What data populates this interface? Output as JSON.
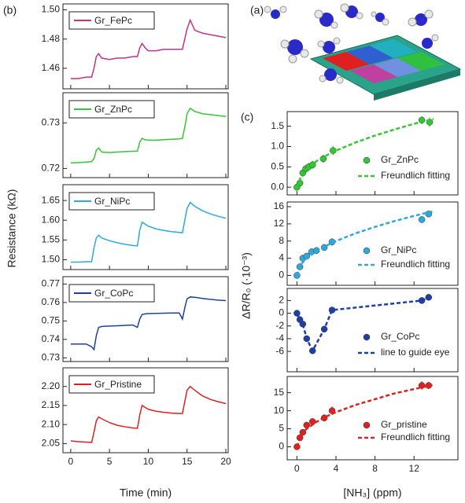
{
  "illustration": {
    "label": "(a)"
  },
  "chart_data": [
    {
      "type": "line",
      "panel_label": "(b)",
      "xlabel": "Time (min)",
      "ylabel": "Resistance (kΩ)",
      "xlim": [
        -1,
        20.3
      ],
      "xticks": [
        0,
        5,
        10,
        15,
        20
      ],
      "x": [
        0,
        1,
        2,
        2.7,
        3.0,
        3.3,
        3.6,
        4,
        5,
        6,
        7,
        8,
        8.6,
        8.9,
        9.2,
        9.6,
        10,
        11,
        12,
        13,
        14,
        14.4,
        14.7,
        15.0,
        15.4,
        16,
        17,
        18,
        19,
        20
      ],
      "panels": [
        {
          "ylim": [
            1.446,
            1.504
          ],
          "yticks": [
            1.46,
            1.48,
            {
              "value": 1.5,
              "label": "1.50"
            }
          ],
          "series": [
            {
              "name": "Gr_FePc",
              "color": "#c2318c",
              "values": [
                1.453,
                1.453,
                1.454,
                1.454,
                1.46,
                1.468,
                1.47,
                1.467,
                1.466,
                1.467,
                1.467,
                1.468,
                1.468,
                1.474,
                1.477,
                1.474,
                1.472,
                1.472,
                1.473,
                1.473,
                1.473,
                1.473,
                1.48,
                1.487,
                1.493,
                1.486,
                1.484,
                1.483,
                1.482,
                1.481
              ]
            }
          ]
        },
        {
          "ylim": [
            0.718,
            0.7366
          ],
          "yticks": [
            0.72,
            0.73
          ],
          "series": [
            {
              "name": "Gr_ZnPc",
              "color": "#33c733",
              "values": [
                0.7212,
                0.7213,
                0.7214,
                0.7215,
                0.7222,
                0.724,
                0.7245,
                0.7236,
                0.7235,
                0.7236,
                0.7237,
                0.7238,
                0.7238,
                0.7258,
                0.7266,
                0.7263,
                0.7262,
                0.7262,
                0.7263,
                0.7264,
                0.7265,
                0.7266,
                0.729,
                0.732,
                0.7332,
                0.7325,
                0.732,
                0.7318,
                0.7316,
                0.7314
              ]
            }
          ]
        },
        {
          "ylim": [
            1.475,
            1.69
          ],
          "yticks": [
            {
              "value": 1.5,
              "label": "1.50"
            },
            1.55,
            {
              "value": 1.6,
              "label": "1.60"
            },
            1.65
          ],
          "series": [
            {
              "name": "Gr_NiPc",
              "color": "#2fa8dc",
              "values": [
                1.494,
                1.494,
                1.495,
                1.495,
                1.53,
                1.555,
                1.562,
                1.555,
                1.548,
                1.543,
                1.539,
                1.536,
                1.535,
                1.575,
                1.595,
                1.59,
                1.585,
                1.578,
                1.574,
                1.571,
                1.569,
                1.568,
                1.6,
                1.63,
                1.645,
                1.635,
                1.624,
                1.616,
                1.61,
                1.605
              ]
            }
          ]
        },
        {
          "ylim": [
            0.728,
            0.774
          ],
          "yticks": [
            0.73,
            0.74,
            0.75,
            0.76,
            0.77
          ],
          "series": [
            {
              "name": "Gr_CoPc",
              "color": "#1f3fa6",
              "values": [
                0.7375,
                0.7375,
                0.7375,
                0.736,
                0.7345,
                0.742,
                0.7465,
                0.747,
                0.7472,
                0.7474,
                0.7476,
                0.7478,
                0.7465,
                0.751,
                0.7535,
                0.7538,
                0.754,
                0.7541,
                0.7542,
                0.7543,
                0.7543,
                0.751,
                0.757,
                0.762,
                0.763,
                0.7628,
                0.7622,
                0.7617,
                0.7613,
                0.761
              ]
            }
          ]
        },
        {
          "ylim": [
            2.026,
            2.249
          ],
          "yticks": [
            2.05,
            {
              "value": 2.1,
              "label": "2.10"
            },
            2.15,
            {
              "value": 2.2,
              "label": "2.20"
            }
          ],
          "series": [
            {
              "name": "Gr_Pristine",
              "color": "#dd2222",
              "values": [
                2.057,
                2.055,
                2.054,
                2.053,
                2.08,
                2.11,
                2.12,
                2.115,
                2.105,
                2.098,
                2.094,
                2.091,
                2.09,
                2.125,
                2.15,
                2.145,
                2.14,
                2.135,
                2.132,
                2.13,
                2.129,
                2.129,
                2.16,
                2.19,
                2.2,
                2.19,
                2.175,
                2.166,
                2.16,
                2.155
              ]
            }
          ]
        }
      ]
    },
    {
      "type": "scatter",
      "panel_label": "(c)",
      "xlabel": "[NH₃] (ppm)",
      "ylabel": "ΔR/R₀ (·10⁻³)",
      "xlim": [
        -1,
        16.5
      ],
      "xticks": [
        0,
        4,
        8,
        12
      ],
      "panels": [
        {
          "ylim": [
            -0.19,
            1.86
          ],
          "yticks": [
            {
              "value": 0,
              "label": "0.0"
            },
            0.5,
            {
              "value": 1,
              "label": "1.0"
            },
            1.5
          ],
          "series": [
            {
              "name": "Gr_ZnPc",
              "color": "#33c733",
              "x": [
                0,
                0.3,
                0.6,
                0.9,
                1.2,
                1.6,
                2.7,
                3.7,
                12.8,
                13.6
              ],
              "values": [
                0,
                0.1,
                0.35,
                0.45,
                0.5,
                0.55,
                0.7,
                0.9,
                1.65,
                1.6
              ],
              "errors": [
                0.08,
                0.08,
                0.1,
                0.1,
                0.1,
                0.1,
                0.1,
                0.12,
                0.1,
                0.12
              ]
            },
            {
              "name": "Freundlich fitting",
              "color": "#33c733",
              "style": "dashed",
              "x": [
                0,
                0.5,
                1,
                2,
                3,
                4,
                6,
                8,
                10,
                12,
                14
              ],
              "values": [
                0,
                0.32,
                0.45,
                0.64,
                0.78,
                0.9,
                1.1,
                1.27,
                1.42,
                1.56,
                1.68
              ]
            }
          ]
        },
        {
          "ylim": [
            -2.3,
            17.1
          ],
          "yticks": [
            0,
            4,
            8,
            12,
            16
          ],
          "series": [
            {
              "name": "Gr_NiPc",
              "color": "#2fa8dc",
              "x": [
                0,
                0.3,
                0.6,
                1.0,
                1.5,
                2.0,
                2.8,
                3.6,
                12.8,
                13.5
              ],
              "values": [
                0,
                2,
                4,
                4.5,
                5.5,
                5.8,
                6.5,
                7.8,
                13,
                14.3
              ],
              "errors": [
                0.6,
                0.6,
                0.7,
                0.7,
                0.7,
                0.7,
                0.8,
                0.9,
                0.8,
                0.7
              ]
            },
            {
              "name": "Freundlich fitting",
              "color": "#2fa8dc",
              "style": "dashed",
              "x": [
                0,
                0.5,
                1,
                2,
                3,
                4,
                6,
                8,
                10,
                12,
                14
              ],
              "values": [
                0,
                2.83,
                4,
                5.66,
                6.93,
                8,
                9.8,
                11.3,
                12.65,
                13.86,
                14.97
              ]
            }
          ]
        },
        {
          "ylim": [
            -9.2,
            3.9
          ],
          "yticks": [
            -6,
            -4,
            -2,
            0,
            2
          ],
          "series": [
            {
              "name": "Gr_CoPc",
              "color": "#1f3fa6",
              "x": [
                0,
                0.3,
                0.6,
                1.0,
                1.6,
                2.8,
                3.6,
                12.8,
                13.5
              ],
              "values": [
                0,
                -1,
                -1.7,
                -4,
                -5.9,
                -2.5,
                0.5,
                2,
                2.5
              ],
              "errors": [
                0.3,
                0.3,
                0.4,
                0.5,
                0.5,
                0.5,
                0.4,
                0.4,
                0.3
              ]
            },
            {
              "name": "line to guide eye",
              "color": "#1f3fa6",
              "style": "dashed",
              "x": [
                0,
                0.3,
                0.6,
                1.0,
                1.6,
                2.8,
                3.6,
                12.8,
                13.5
              ],
              "values": [
                0,
                -1,
                -1.7,
                -4,
                -5.9,
                -2.5,
                0.5,
                2,
                2.5
              ]
            }
          ]
        },
        {
          "ylim": [
            -3.6,
            19.5
          ],
          "yticks": [
            0,
            5,
            10,
            15
          ],
          "series": [
            {
              "name": "Gr_pristine",
              "color": "#dd2222",
              "x": [
                0,
                0.3,
                0.6,
                1.0,
                1.6,
                2.8,
                3.6,
                12.8,
                13.5
              ],
              "values": [
                0,
                2.5,
                4,
                6,
                7,
                8,
                10,
                17,
                17
              ],
              "errors": [
                0.5,
                0.6,
                0.7,
                0.8,
                0.8,
                1,
                1.2,
                1.2,
                1
              ]
            },
            {
              "name": "Freundlich fitting",
              "color": "#dd2222",
              "style": "dashed",
              "x": [
                0,
                0.5,
                1,
                2,
                3,
                4,
                6,
                8,
                10,
                12,
                14
              ],
              "values": [
                0,
                3.6,
                5,
                6.9,
                8.4,
                9.6,
                11.6,
                13.2,
                14.8,
                16,
                17.2
              ]
            }
          ]
        }
      ]
    }
  ]
}
